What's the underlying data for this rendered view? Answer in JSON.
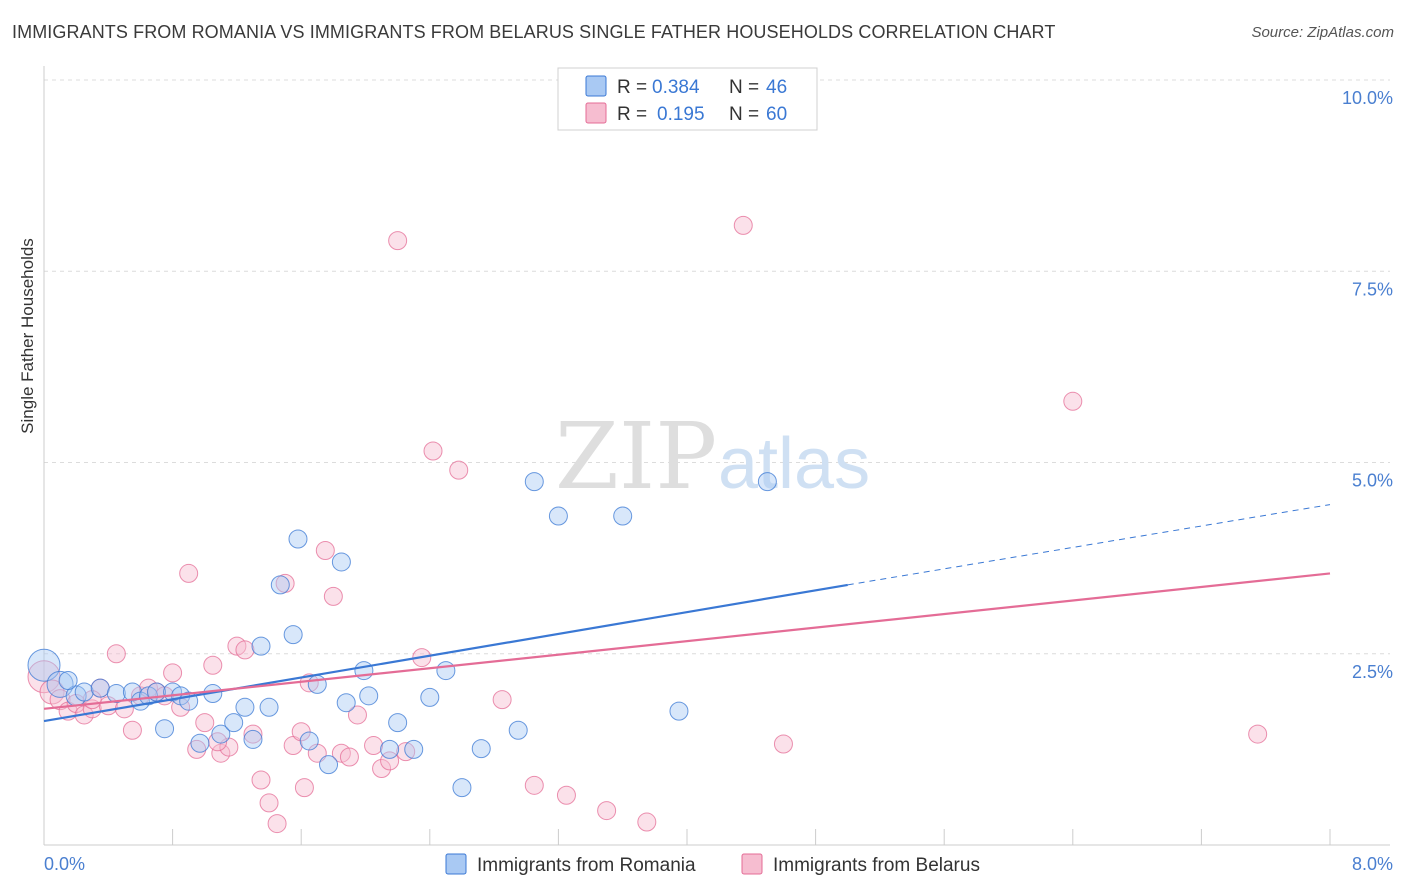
{
  "title": "IMMIGRANTS FROM ROMANIA VS IMMIGRANTS FROM BELARUS SINGLE FATHER HOUSEHOLDS CORRELATION CHART",
  "source": "Source: ZipAtlas.com",
  "watermark": {
    "zip": "ZIP",
    "atlas": "atlas"
  },
  "colors": {
    "romania_fill": "#a9c9f3",
    "romania_line": "#3a78d4",
    "belarus_fill": "#f6bdd0",
    "belarus_line": "#e46c96",
    "tick_label": "#4a7fd0",
    "grid": "#dcdcdc"
  },
  "legend": {
    "rows": [
      {
        "r_label": "R =",
        "r_value": "0.384",
        "n_label": "N =",
        "n_value": "46"
      },
      {
        "r_label": "R =",
        "r_value": "0.195",
        "n_label": "N =",
        "n_value": "60"
      }
    ]
  },
  "bottom_legend": [
    "Immigrants from Romania",
    "Immigrants from Belarus"
  ],
  "chart_data": {
    "type": "scatter",
    "title": "IMMIGRANTS FROM ROMANIA VS IMMIGRANTS FROM BELARUS SINGLE FATHER HOUSEHOLDS CORRELATION CHART",
    "xlabel": "",
    "ylabel": "Single Father Households",
    "xlim": [
      0,
      8
    ],
    "ylim": [
      0,
      10
    ],
    "x_tick_labels": [
      "0.0%",
      "8.0%"
    ],
    "y_ticks": [
      2.5,
      5.0,
      7.5,
      10.0
    ],
    "y_tick_labels": [
      "2.5%",
      "5.0%",
      "7.5%",
      "10.0%"
    ],
    "grid": true,
    "legend_position": "top-center",
    "series": [
      {
        "name": "Immigrants from Romania",
        "r": 0.384,
        "n": 46,
        "trend": {
          "x0": 0.0,
          "y0": 1.62,
          "x1": 5.0,
          "y1": 3.4,
          "dashed_to_x": 8.0,
          "dashed_to_y": 4.45
        },
        "points": [
          [
            0.0,
            2.35,
            16
          ],
          [
            0.1,
            2.1,
            13
          ],
          [
            0.2,
            1.95,
            10
          ],
          [
            0.25,
            2.0,
            9
          ],
          [
            0.35,
            2.05,
            9
          ],
          [
            0.45,
            1.98,
            9
          ],
          [
            0.55,
            2.0,
            9
          ],
          [
            0.6,
            1.88,
            9
          ],
          [
            0.65,
            1.95,
            9
          ],
          [
            0.7,
            2.0,
            9
          ],
          [
            0.75,
            1.52,
            9
          ],
          [
            0.8,
            2.0,
            9
          ],
          [
            0.85,
            1.95,
            9
          ],
          [
            0.9,
            1.88,
            9
          ],
          [
            0.97,
            1.33,
            9
          ],
          [
            1.05,
            1.98,
            9
          ],
          [
            1.1,
            1.45,
            9
          ],
          [
            1.18,
            1.6,
            9
          ],
          [
            1.25,
            1.8,
            9
          ],
          [
            1.3,
            1.38,
            9
          ],
          [
            1.35,
            2.6,
            9
          ],
          [
            1.4,
            1.8,
            9
          ],
          [
            1.47,
            3.4,
            9
          ],
          [
            1.55,
            2.75,
            9
          ],
          [
            1.58,
            4.0,
            9
          ],
          [
            1.65,
            1.36,
            9
          ],
          [
            1.7,
            2.1,
            9
          ],
          [
            1.77,
            1.05,
            9
          ],
          [
            1.85,
            3.7,
            9
          ],
          [
            1.88,
            1.86,
            9
          ],
          [
            1.99,
            2.28,
            9
          ],
          [
            2.02,
            1.95,
            9
          ],
          [
            2.15,
            1.25,
            9
          ],
          [
            2.2,
            1.6,
            9
          ],
          [
            2.3,
            1.25,
            9
          ],
          [
            2.4,
            1.93,
            9
          ],
          [
            2.5,
            2.28,
            9
          ],
          [
            2.6,
            0.75,
            9
          ],
          [
            2.72,
            1.26,
            9
          ],
          [
            2.95,
            1.5,
            9
          ],
          [
            3.05,
            4.75,
            9
          ],
          [
            3.2,
            4.3,
            9
          ],
          [
            3.6,
            4.3,
            9
          ],
          [
            3.95,
            1.75,
            9
          ],
          [
            4.5,
            4.75,
            9
          ],
          [
            0.15,
            2.15,
            9
          ]
        ]
      },
      {
        "name": "Immigrants from Belarus",
        "r": 0.195,
        "n": 60,
        "trend": {
          "x0": 0.0,
          "y0": 1.78,
          "x1": 8.0,
          "y1": 3.55
        },
        "points": [
          [
            0.0,
            2.2,
            16
          ],
          [
            0.05,
            2.0,
            12
          ],
          [
            0.1,
            1.9,
            10
          ],
          [
            0.15,
            1.75,
            9
          ],
          [
            0.2,
            1.85,
            9
          ],
          [
            0.25,
            1.7,
            9
          ],
          [
            0.3,
            1.78,
            9
          ],
          [
            0.35,
            2.05,
            9
          ],
          [
            0.4,
            1.82,
            9
          ],
          [
            0.45,
            2.5,
            9
          ],
          [
            0.5,
            1.78,
            9
          ],
          [
            0.55,
            1.5,
            9
          ],
          [
            0.6,
            1.95,
            9
          ],
          [
            0.65,
            2.05,
            9
          ],
          [
            0.7,
            2.0,
            9
          ],
          [
            0.75,
            1.95,
            9
          ],
          [
            0.8,
            2.25,
            9
          ],
          [
            0.85,
            1.8,
            9
          ],
          [
            0.9,
            3.55,
            9
          ],
          [
            0.95,
            1.25,
            9
          ],
          [
            1.0,
            1.6,
            9
          ],
          [
            1.05,
            2.35,
            9
          ],
          [
            1.1,
            1.2,
            9
          ],
          [
            1.15,
            1.28,
            9
          ],
          [
            1.2,
            2.6,
            9
          ],
          [
            1.25,
            2.55,
            9
          ],
          [
            1.3,
            1.45,
            9
          ],
          [
            1.35,
            0.85,
            9
          ],
          [
            1.4,
            0.55,
            9
          ],
          [
            1.45,
            0.28,
            9
          ],
          [
            1.5,
            3.42,
            9
          ],
          [
            1.55,
            1.3,
            9
          ],
          [
            1.6,
            1.48,
            9
          ],
          [
            1.65,
            2.12,
            9
          ],
          [
            1.7,
            1.2,
            9
          ],
          [
            1.75,
            3.85,
            9
          ],
          [
            1.8,
            3.25,
            9
          ],
          [
            1.85,
            1.2,
            9
          ],
          [
            1.9,
            1.15,
            9
          ],
          [
            1.95,
            1.7,
            9
          ],
          [
            2.05,
            1.3,
            9
          ],
          [
            2.1,
            1.0,
            9
          ],
          [
            2.15,
            1.1,
            9
          ],
          [
            2.2,
            7.9,
            9
          ],
          [
            2.25,
            1.22,
            9
          ],
          [
            2.35,
            2.45,
            9
          ],
          [
            2.42,
            5.15,
            9
          ],
          [
            2.58,
            4.9,
            9
          ],
          [
            2.85,
            1.9,
            9
          ],
          [
            3.05,
            0.78,
            9
          ],
          [
            3.25,
            0.65,
            9
          ],
          [
            3.5,
            0.45,
            9
          ],
          [
            3.75,
            0.3,
            9
          ],
          [
            4.35,
            8.1,
            9
          ],
          [
            4.6,
            1.32,
            9
          ],
          [
            6.4,
            5.8,
            9
          ],
          [
            7.55,
            1.45,
            9
          ],
          [
            1.08,
            1.35,
            9
          ],
          [
            0.3,
            1.9,
            9
          ],
          [
            1.62,
            0.75,
            9
          ]
        ]
      }
    ]
  }
}
